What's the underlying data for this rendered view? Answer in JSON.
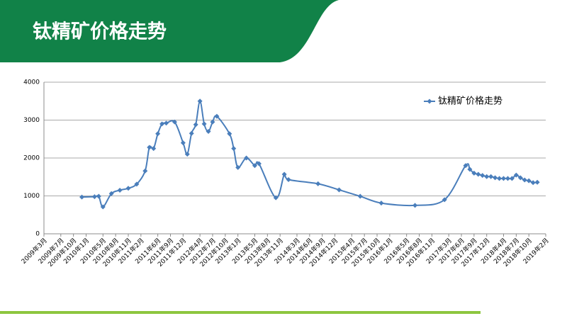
{
  "chart_data": {
    "type": "line",
    "title": "钛精矿价格走势",
    "x": [
      "2009-12",
      "2010-03",
      "2010-04",
      "2010-05",
      "2010-07",
      "2010-09",
      "2010-11",
      "2011-01",
      "2011-03",
      "2011-04",
      "2011-05",
      "2011-06",
      "2011-07",
      "2011-08",
      "2011-10",
      "2011-12",
      "2012-01",
      "2012-02",
      "2012-03",
      "2012-04",
      "2012-05",
      "2012-06",
      "2012-07",
      "2012-08",
      "2012-11",
      "2012-12",
      "2013-01",
      "2013-03",
      "2013-05",
      "2013-06",
      "2013-10",
      "2013-12",
      "2014-01",
      "2014-08",
      "2015-01",
      "2015-06",
      "2015-11",
      "2016-07",
      "2017-02",
      "2017-07",
      "2017-08",
      "2017-09",
      "2017-10",
      "2017-11",
      "2017-12",
      "2018-01",
      "2018-02",
      "2018-03",
      "2018-04",
      "2018-05",
      "2018-06",
      "2018-07",
      "2018-08",
      "2018-09",
      "2018-10",
      "2018-11",
      "2018-12"
    ],
    "series": [
      {
        "name": "钛精矿价格走势",
        "color": "#4a7ebb",
        "values": [
          970,
          980,
          990,
          710,
          1060,
          1150,
          1200,
          1310,
          1660,
          2280,
          2250,
          2640,
          2900,
          2920,
          2950,
          2400,
          2100,
          2650,
          2880,
          3500,
          2900,
          2700,
          2950,
          3100,
          2640,
          2250,
          1750,
          2000,
          1800,
          1850,
          950,
          1570,
          1430,
          1320,
          1160,
          990,
          810,
          750,
          900,
          1800,
          1700,
          1600,
          1570,
          1540,
          1510,
          1510,
          1480,
          1460,
          1460,
          1460,
          1460,
          1550,
          1480,
          1420,
          1400,
          1350,
          1360
        ]
      }
    ],
    "xlim": [
      "2009-03",
      "2019-02"
    ],
    "xticks": [
      {
        "value": "2009-03",
        "label": "2009年3月"
      },
      {
        "value": "2009-07",
        "label": "2009年7月"
      },
      {
        "value": "2009-10",
        "label": "2009年10月"
      },
      {
        "value": "2010-01",
        "label": "2010年1月"
      },
      {
        "value": "2010-05",
        "label": "2010年5月"
      },
      {
        "value": "2010-08",
        "label": "2010年8月"
      },
      {
        "value": "2010-11",
        "label": "2010年11月"
      },
      {
        "value": "2011-02",
        "label": "2011年2月"
      },
      {
        "value": "2011-06",
        "label": "2011年6月"
      },
      {
        "value": "2011-09",
        "label": "2011年9月"
      },
      {
        "value": "2011-12",
        "label": "2011年12月"
      },
      {
        "value": "2012-04",
        "label": "2012年4月"
      },
      {
        "value": "2012-07",
        "label": "2012年7月"
      },
      {
        "value": "2012-10",
        "label": "2012年10月"
      },
      {
        "value": "2013-01",
        "label": "2013年1月"
      },
      {
        "value": "2013-05",
        "label": "2013年5月"
      },
      {
        "value": "2013-08",
        "label": "2013年8月"
      },
      {
        "value": "2013-11",
        "label": "2013年11月"
      },
      {
        "value": "2014-03",
        "label": "2014年3月"
      },
      {
        "value": "2014-06",
        "label": "2014年6月"
      },
      {
        "value": "2014-09",
        "label": "2014年9月"
      },
      {
        "value": "2014-12",
        "label": "2014年12月"
      },
      {
        "value": "2015-04",
        "label": "2015年4月"
      },
      {
        "value": "2015-07",
        "label": "2015年7月"
      },
      {
        "value": "2015-10",
        "label": "2015年10月"
      },
      {
        "value": "2016-01",
        "label": "2016年1月"
      },
      {
        "value": "2016-05",
        "label": "2016年5月"
      },
      {
        "value": "2016-08",
        "label": "2016年8月"
      },
      {
        "value": "2016-11",
        "label": "2016年11月"
      },
      {
        "value": "2017-03",
        "label": "2017年3月"
      },
      {
        "value": "2017-06",
        "label": "2017年6月"
      },
      {
        "value": "2017-09",
        "label": "2017年9月"
      },
      {
        "value": "2017-12",
        "label": "2017年12月"
      },
      {
        "value": "2018-04",
        "label": "2018年4月"
      },
      {
        "value": "2018-07",
        "label": "2018年7月"
      },
      {
        "value": "2018-10",
        "label": "2018年10月"
      },
      {
        "value": "2019-02",
        "label": "2019年2月"
      }
    ],
    "ylim": [
      0,
      4000
    ],
    "yticks": [
      0,
      1000,
      2000,
      3000,
      4000
    ],
    "grid": true,
    "legend": "upper-right"
  }
}
